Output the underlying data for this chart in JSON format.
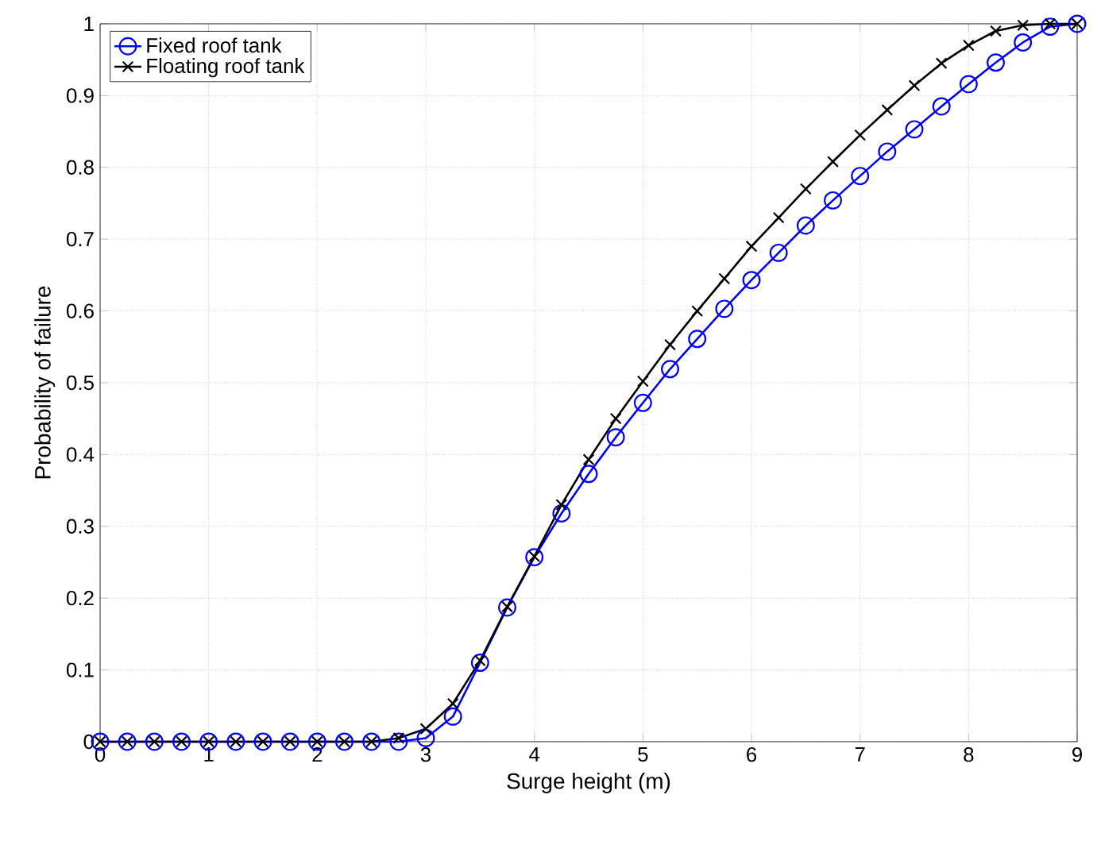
{
  "chart_data": {
    "type": "line",
    "xlabel": "Surge height (m)",
    "ylabel": "Probability of failure",
    "x": [
      0,
      0.25,
      0.5,
      0.75,
      1,
      1.25,
      1.5,
      1.75,
      2,
      2.25,
      2.5,
      2.75,
      3,
      3.25,
      3.5,
      3.75,
      4,
      4.25,
      4.5,
      4.75,
      5,
      5.25,
      5.5,
      5.75,
      6,
      6.25,
      6.5,
      6.75,
      7,
      7.25,
      7.5,
      7.75,
      8,
      8.25,
      8.5,
      8.75,
      9
    ],
    "series": [
      {
        "name": "Fixed roof tank",
        "color": "#0000ff",
        "marker": "circle",
        "values": [
          0,
          0,
          0,
          0,
          0,
          0,
          0,
          0,
          0,
          0,
          0,
          0,
          0.005,
          0.035,
          0.11,
          0.187,
          0.257,
          0.318,
          0.373,
          0.424,
          0.472,
          0.519,
          0.561,
          0.603,
          0.643,
          0.681,
          0.719,
          0.754,
          0.788,
          0.822,
          0.853,
          0.885,
          0.916,
          0.946,
          0.974,
          0.996,
          1.0
        ]
      },
      {
        "name": "Floating roof tank",
        "color": "#000000",
        "marker": "cross",
        "values": [
          0,
          0,
          0,
          0,
          0,
          0,
          0,
          0,
          0,
          0,
          0,
          0.005,
          0.018,
          0.053,
          0.113,
          0.188,
          0.258,
          0.33,
          0.393,
          0.45,
          0.502,
          0.553,
          0.6,
          0.645,
          0.69,
          0.73,
          0.77,
          0.808,
          0.845,
          0.88,
          0.914,
          0.945,
          0.97,
          0.99,
          0.998,
          1.0,
          1.0
        ]
      }
    ],
    "xlim": [
      0,
      9
    ],
    "ylim": [
      0,
      1
    ],
    "xticks": [
      0,
      1,
      2,
      3,
      4,
      5,
      6,
      7,
      8,
      9
    ],
    "yticks": [
      0,
      0.1,
      0.2,
      0.3,
      0.4,
      0.5,
      0.6,
      0.7,
      0.8,
      0.9,
      1
    ],
    "grid": true,
    "legend": "top left",
    "line_style": "solid"
  }
}
